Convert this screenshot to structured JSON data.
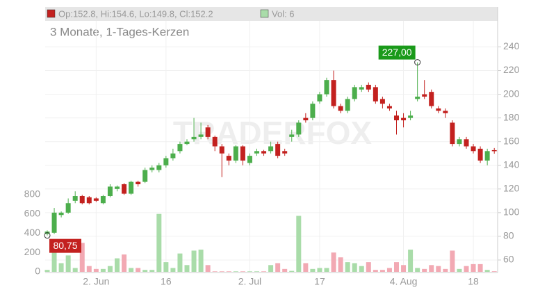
{
  "chart_data": {
    "type": "candlestick",
    "legend_ohlc": "Op:152.8, Hi:154.6, Lo:149.8, Cl:152.2",
    "legend_volume": "Vol: 6",
    "subtitle": "3 Monate, 1-Tages-Kerzen",
    "watermark": "TRADERFOX",
    "max_label": "227,00",
    "min_label": "80,75",
    "categories": [
      null,
      null,
      null,
      null,
      null,
      null,
      null,
      "2. Jun",
      null,
      null,
      null,
      null,
      null,
      null,
      null,
      null,
      null,
      "16",
      null,
      null,
      null,
      null,
      null,
      null,
      null,
      null,
      null,
      null,
      null,
      "2. Jul",
      null,
      null,
      null,
      null,
      null,
      null,
      null,
      null,
      null,
      "17",
      null,
      null,
      null,
      null,
      null,
      null,
      null,
      null,
      null,
      null,
      null,
      "4. Aug",
      null,
      null,
      null,
      null,
      null,
      null,
      null,
      null,
      null,
      "18",
      null,
      null,
      null
    ],
    "open": [
      82,
      83,
      98,
      100,
      110,
      114,
      113,
      112,
      108,
      114,
      120,
      124,
      116,
      126,
      126,
      136,
      136,
      140,
      146,
      152,
      158,
      162,
      164,
      172,
      164,
      156,
      148,
      144,
      156,
      142,
      150,
      152,
      152,
      158,
      152,
      164,
      166,
      180,
      180,
      194,
      200,
      212,
      190,
      186,
      196,
      204,
      208,
      206,
      196,
      190,
      182,
      180,
      180,
      196,
      200,
      202,
      188,
      186,
      176,
      158,
      162,
      156,
      154,
      144,
      152.8
    ],
    "high": [
      85,
      104,
      101,
      112,
      118,
      115,
      114,
      113,
      115,
      124,
      123,
      125,
      127,
      127,
      138,
      140,
      142,
      148,
      154,
      160,
      162,
      180,
      176,
      174,
      165,
      158,
      150,
      157,
      157,
      150,
      154,
      153,
      160,
      160,
      154,
      170,
      178,
      184,
      194,
      202,
      214,
      220,
      192,
      198,
      208,
      208,
      210,
      208,
      198,
      192,
      186,
      184,
      186,
      227,
      212,
      204,
      190,
      188,
      178,
      164,
      164,
      158,
      156,
      154,
      154.6
    ],
    "low": [
      80.75,
      82,
      96,
      99,
      108,
      107,
      107,
      109,
      107,
      113,
      118,
      115,
      115,
      122,
      125,
      134,
      134,
      138,
      144,
      150,
      157,
      160,
      162,
      162,
      152,
      130,
      140,
      142,
      140,
      140,
      148,
      148,
      150,
      146,
      148,
      160,
      164,
      176,
      178,
      192,
      198,
      188,
      184,
      184,
      194,
      202,
      202,
      192,
      188,
      186,
      166,
      172,
      178,
      194,
      196,
      188,
      184,
      180,
      156,
      156,
      154,
      150,
      142,
      140,
      149.8
    ],
    "close": [
      84,
      100,
      100,
      108,
      114,
      108,
      108,
      110,
      114,
      122,
      122,
      116,
      126,
      124,
      136,
      138,
      140,
      146,
      150,
      158,
      160,
      164,
      166,
      164,
      156,
      150,
      144,
      156,
      144,
      148,
      152,
      150,
      156,
      148,
      150,
      166,
      176,
      178,
      192,
      200,
      212,
      190,
      186,
      196,
      206,
      206,
      204,
      194,
      192,
      188,
      178,
      178,
      182,
      198,
      198,
      190,
      186,
      184,
      158,
      162,
      156,
      152,
      144,
      152,
      152.2
    ],
    "volume": [
      20,
      330,
      90,
      170,
      40,
      300,
      60,
      30,
      30,
      60,
      140,
      180,
      40,
      40,
      20,
      20,
      600,
      100,
      40,
      190,
      70,
      220,
      230,
      70,
      5,
      5,
      5,
      5,
      5,
      5,
      5,
      5,
      70,
      90,
      30,
      10,
      580,
      90,
      30,
      40,
      40,
      200,
      150,
      100,
      90,
      60,
      100,
      20,
      20,
      40,
      100,
      70,
      230,
      40,
      30,
      70,
      60,
      30,
      220,
      30,
      60,
      80,
      80,
      20,
      6
    ],
    "up_color": "#4cae4c",
    "down_color": "#c3211f",
    "up_volume_color": "#a9dca9",
    "down_volume_color": "#f2a9b3",
    "ylim": [
      50,
      262
    ],
    "yticks": [
      60,
      80,
      100,
      120,
      140,
      160,
      180,
      200,
      220,
      240
    ],
    "vlim": [
      0,
      2600
    ],
    "vticks": [
      0,
      200,
      400,
      600,
      800
    ],
    "grid": true
  }
}
